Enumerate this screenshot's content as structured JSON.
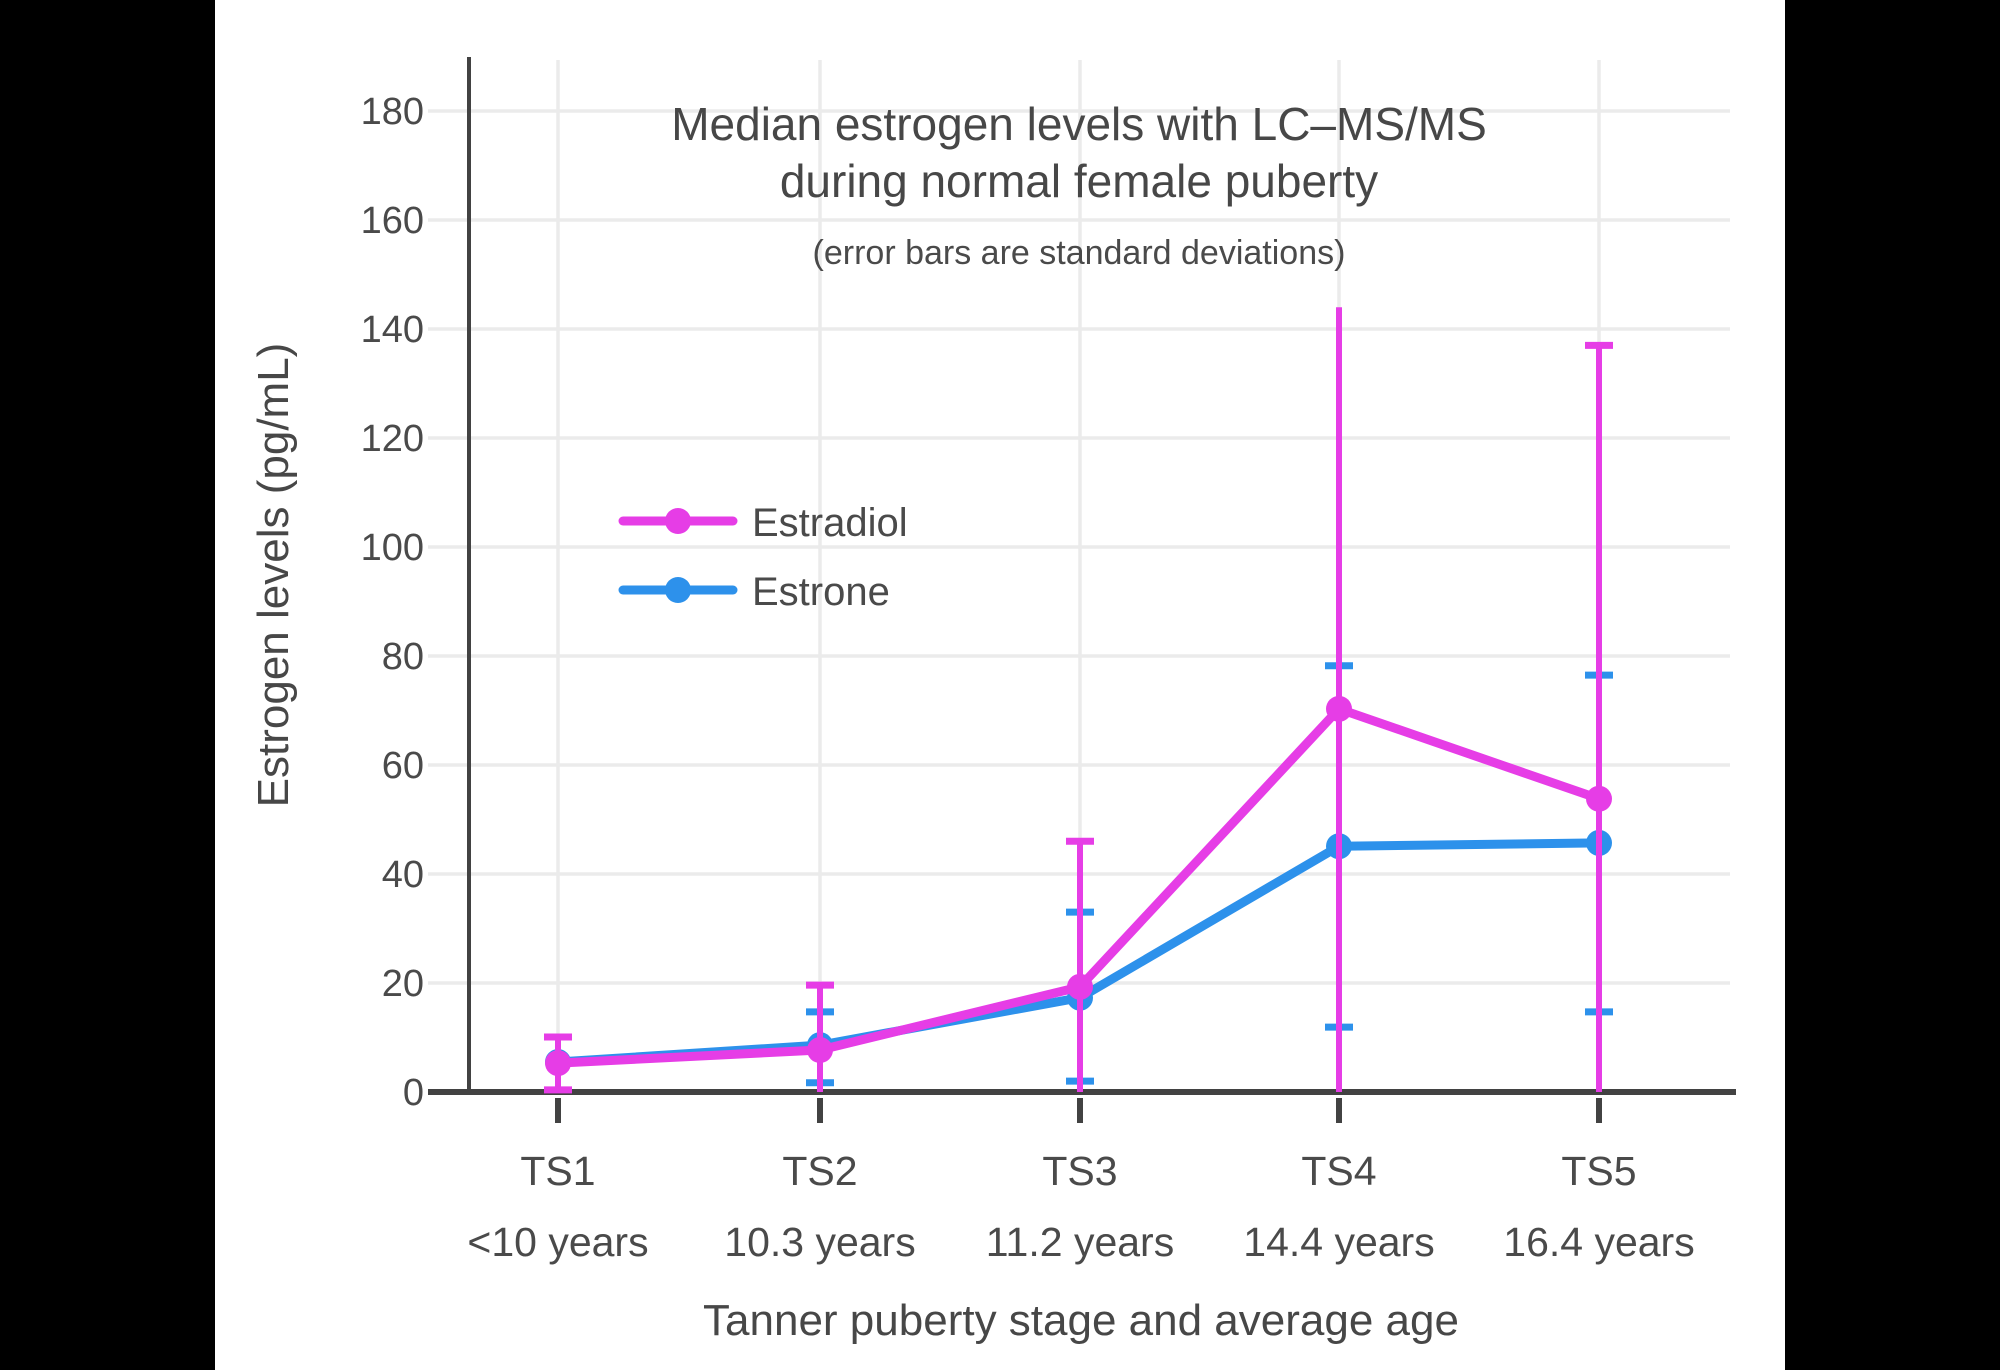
{
  "page": {
    "background_color": "#000000",
    "canvas_color": "#ffffff"
  },
  "chart": {
    "title_line1": "Median estrogen levels with LC–MS/MS",
    "title_line2": "during normal female puberty",
    "subtitle": "(error bars are standard deviations)",
    "x_axis_title": "Tanner puberty stage and average age",
    "y_axis_title": "Estrogen levels (pg/mL)"
  },
  "chart_data": {
    "type": "line",
    "title": "Median estrogen levels with LC–MS/MS during normal female puberty",
    "subtitle": "(error bars are standard deviations)",
    "xlabel": "Tanner puberty stage and average age",
    "ylabel": "Estrogen levels (pg/mL)",
    "categories": [
      "TS1",
      "TS2",
      "TS3",
      "TS4",
      "TS5"
    ],
    "category_sublabels": [
      "<10 years",
      "10.3 years",
      "11.2 years",
      "14.4 years",
      "16.4 years"
    ],
    "ylim": [
      0,
      190
    ],
    "yticks": [
      0,
      20,
      40,
      60,
      80,
      100,
      120,
      140,
      160,
      180
    ],
    "grid": true,
    "legend_position": "inside-upper-left",
    "error_bar_note": "standard deviations; lower estradiol bars clipped at 0",
    "series": [
      {
        "name": "Estradiol",
        "color": "#E63DE6",
        "values": [
          5.3,
          7.7,
          19.3,
          70.3,
          53.8
        ],
        "error_upper": [
          10.1,
          19.6,
          46,
          144,
          137
        ],
        "error_lower": [
          0.4,
          0,
          0,
          0,
          0
        ],
        "cap_upper": [
          true,
          true,
          true,
          false,
          true
        ],
        "cap_lower": [
          true,
          false,
          false,
          false,
          false
        ]
      },
      {
        "name": "Estrone",
        "color": "#2D91EB",
        "values": [
          5.5,
          8.6,
          17.3,
          45.1,
          45.7
        ],
        "error_upper": [
          null,
          14.7,
          33,
          78.2,
          76.5
        ],
        "error_lower": [
          null,
          1.7,
          2,
          11.9,
          14.7
        ],
        "cap_upper": [
          false,
          true,
          true,
          true,
          true
        ],
        "cap_lower": [
          false,
          true,
          true,
          true,
          true
        ]
      }
    ]
  },
  "theme": {
    "axis_color": "#424242",
    "text_color": "#4a4a4a",
    "grid_color": "#ebebeb"
  }
}
